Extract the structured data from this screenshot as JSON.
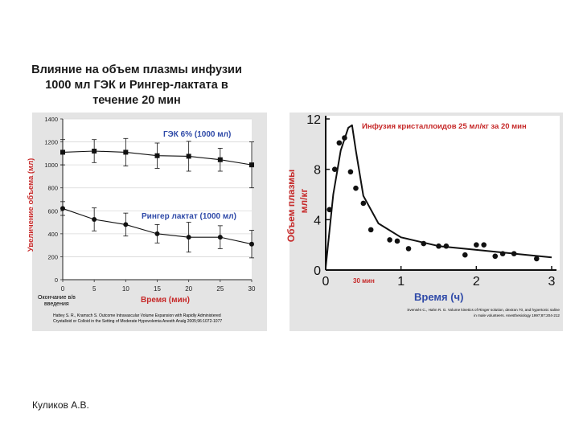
{
  "slide": {
    "title_lines": [
      "Влияние на объем плазмы инфузии",
      "1000 мл ГЭК и Рингер-лактата в",
      "течение 20 мин"
    ],
    "author": "Куликов А.В."
  },
  "chart_data": [
    {
      "type": "line",
      "title": "",
      "xlabel": "Время (мин)",
      "ylabel": "Увеличение объема (мл)",
      "x_note_lines": [
        "Окончание в/в",
        "введения"
      ],
      "xticks": [
        0,
        5,
        10,
        15,
        20,
        25,
        30
      ],
      "yticks": [
        0,
        200,
        400,
        600,
        800,
        1000,
        1200,
        1400
      ],
      "xlim": [
        0,
        30
      ],
      "ylim": [
        0,
        1400
      ],
      "series": [
        {
          "name": "ГЭК 6% (1000 мл)",
          "marker": "square",
          "x": [
            0,
            5,
            10,
            15,
            20,
            25,
            30
          ],
          "y": [
            1110,
            1120,
            1110,
            1080,
            1075,
            1045,
            1000
          ],
          "err": [
            110,
            100,
            120,
            110,
            130,
            100,
            200
          ]
        },
        {
          "name": "Рингер лактат (1000 мл)",
          "marker": "circle",
          "x": [
            0,
            5,
            10,
            15,
            20,
            25,
            30
          ],
          "y": [
            620,
            525,
            480,
            400,
            370,
            370,
            310
          ],
          "err": [
            60,
            100,
            100,
            80,
            130,
            100,
            120
          ]
        }
      ],
      "citation_lines": [
        "Hattey S. R., Kramsch S. Outcome Intravascular Volume Expansion with Rapidly Administered",
        "Crystalloid or Colloid in the Setting of Moderate Hypovolemia Anesth Analg 2005;96:1072-1077"
      ]
    },
    {
      "type": "scatter",
      "title": "Инфузия кристаллоидов 25 мл/кг за 20 мин",
      "xlabel": "Время (ч)",
      "ylabel_lines": [
        "Объем плазмы",
        "мл/кг"
      ],
      "x_annotation": "30 мин",
      "xticks": [
        0,
        1,
        2,
        3
      ],
      "yticks": [
        0,
        4,
        8,
        12
      ],
      "xlim": [
        0,
        3
      ],
      "ylim": [
        0,
        12
      ],
      "points": {
        "x": [
          0.05,
          0.12,
          0.18,
          0.25,
          0.33,
          0.4,
          0.5,
          0.6,
          0.85,
          0.95,
          1.1,
          1.3,
          1.5,
          1.6,
          1.85,
          2.0,
          2.1,
          2.25,
          2.35,
          2.5,
          2.8
        ],
        "y": [
          4.8,
          8.0,
          10.1,
          10.5,
          7.8,
          6.5,
          5.3,
          3.2,
          2.4,
          2.3,
          1.7,
          2.1,
          1.9,
          1.9,
          1.2,
          2.0,
          2.0,
          1.1,
          1.3,
          1.3,
          0.9
        ]
      },
      "fit_curve": {
        "x": [
          0,
          0.1,
          0.2,
          0.3,
          0.35,
          0.4,
          0.5,
          0.7,
          1.0,
          1.5,
          2.0,
          2.5,
          3.0
        ],
        "y": [
          0.2,
          6.0,
          9.5,
          11.3,
          11.5,
          9.5,
          5.9,
          3.7,
          2.6,
          1.9,
          1.6,
          1.3,
          1.0
        ]
      },
      "citation_lines": [
        "Svensén C., Hahn R. G. Volume kinetics of Ringer solution, dextran 70, and hypertonic saline",
        "in male volunteers. Anesthesiology 1997;87:204-212"
      ]
    }
  ]
}
